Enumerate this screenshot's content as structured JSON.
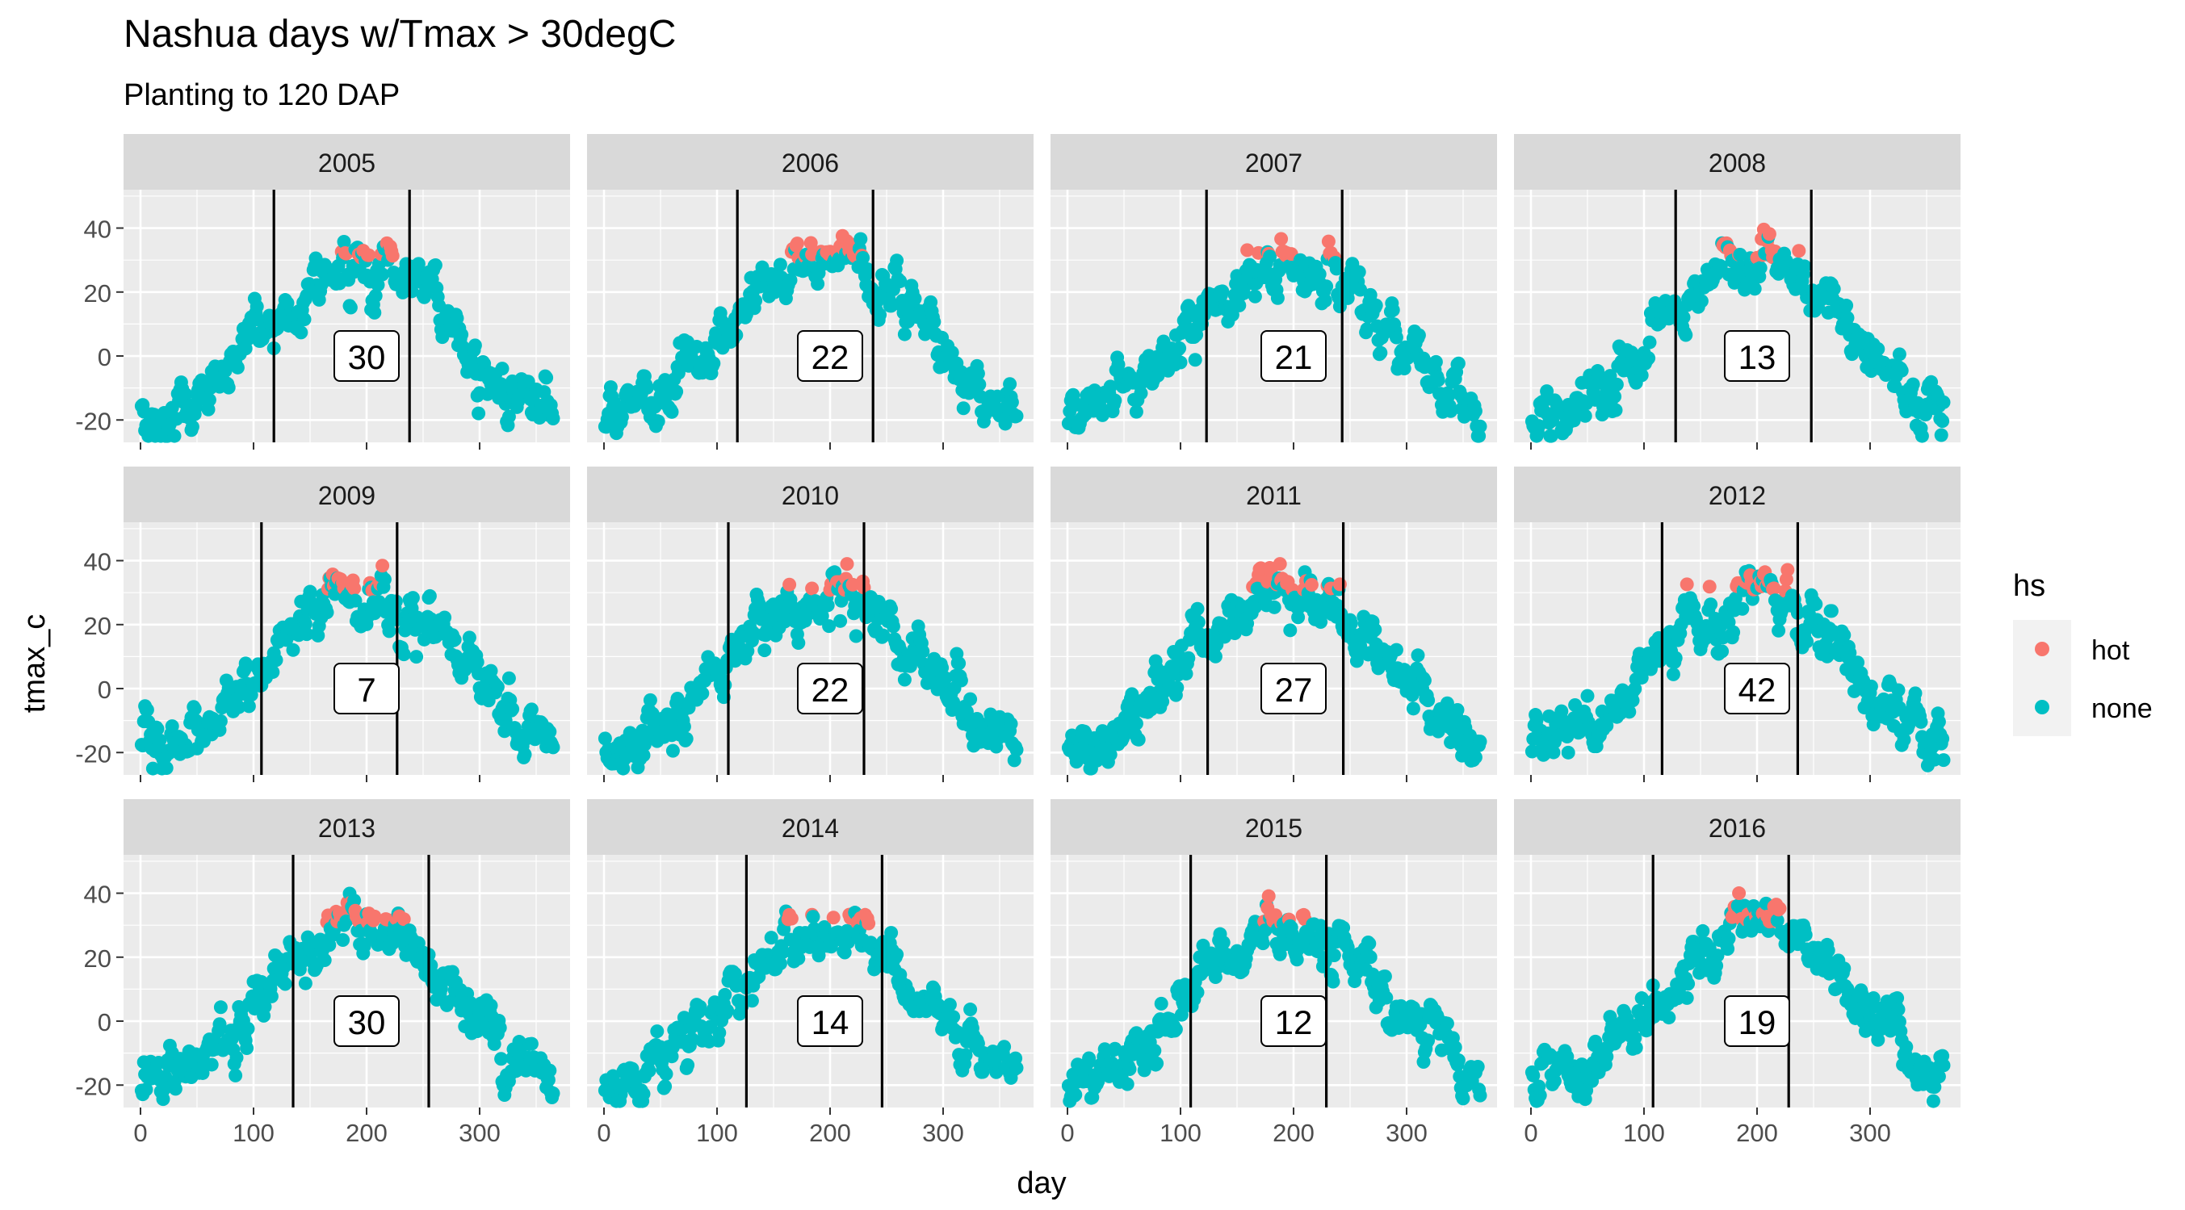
{
  "title": "Nashua days w/Tmax > 30degC",
  "subtitle": "Planting to 120 DAP",
  "xlabel": "day",
  "ylabel": "tmax_c",
  "legend": {
    "title": "hs",
    "position": "right",
    "items": [
      {
        "label": "hot",
        "color": "#F8766D"
      },
      {
        "label": "none",
        "color": "#00BFC4"
      }
    ]
  },
  "chart_data": {
    "type": "scatter",
    "facet_layout": {
      "rows": 3,
      "cols": 4
    },
    "xlim": [
      -15,
      380
    ],
    "ylim": [
      -27,
      52
    ],
    "xticks": [
      0,
      100,
      200,
      300
    ],
    "yticks": [
      -20,
      0,
      20,
      40
    ],
    "grid": true,
    "hot_threshold": 30,
    "series": [
      {
        "name": "hot",
        "color": "#F8766D"
      },
      {
        "name": "none",
        "color": "#00BFC4"
      }
    ],
    "facets": [
      {
        "year": "2005",
        "planting_day": 118,
        "end_day": 238,
        "count": "30",
        "count_x": 200
      },
      {
        "year": "2006",
        "planting_day": 118,
        "end_day": 238,
        "count": "22",
        "count_x": 200
      },
      {
        "year": "2007",
        "planting_day": 123,
        "end_day": 243,
        "count": "21",
        "count_x": 200
      },
      {
        "year": "2008",
        "planting_day": 128,
        "end_day": 248,
        "count": "13",
        "count_x": 200
      },
      {
        "year": "2009",
        "planting_day": 107,
        "end_day": 227,
        "count": "7",
        "count_x": 200
      },
      {
        "year": "2010",
        "planting_day": 110,
        "end_day": 230,
        "count": "22",
        "count_x": 200
      },
      {
        "year": "2011",
        "planting_day": 124,
        "end_day": 244,
        "count": "27",
        "count_x": 200
      },
      {
        "year": "2012",
        "planting_day": 116,
        "end_day": 236,
        "count": "42",
        "count_x": 200
      },
      {
        "year": "2013",
        "planting_day": 135,
        "end_day": 255,
        "count": "30",
        "count_x": 200
      },
      {
        "year": "2014",
        "planting_day": 126,
        "end_day": 246,
        "count": "14",
        "count_x": 200
      },
      {
        "year": "2015",
        "planting_day": 109,
        "end_day": 229,
        "count": "12",
        "count_x": 200
      },
      {
        "year": "2016",
        "planting_day": 108,
        "end_day": 228,
        "count": "19",
        "count_x": 200
      }
    ]
  }
}
